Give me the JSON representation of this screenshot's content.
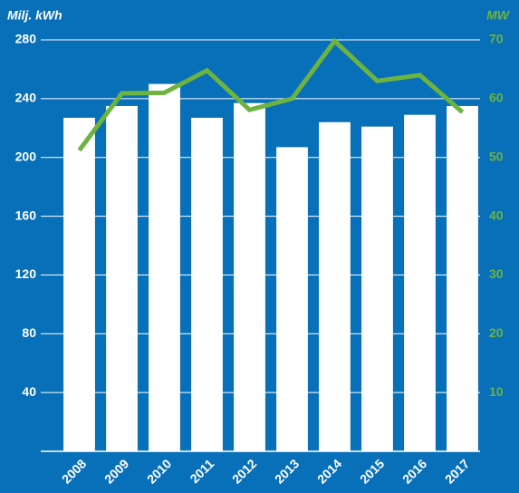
{
  "chart_data": {
    "type": "bar",
    "y_label": "Milj. kWh",
    "y2_label": "MW",
    "categories": [
      "2008",
      "2009",
      "2010",
      "2011",
      "2012",
      "2013",
      "2014",
      "2015",
      "2016",
      "2017"
    ],
    "series": [
      {
        "type": "bar",
        "color": "#ffffff",
        "values": [
          227,
          235,
          250,
          227,
          237,
          207,
          224,
          221,
          229,
          235
        ]
      },
      {
        "type": "line",
        "axis": "y2",
        "color": "#6cb33f",
        "values": [
          51.2,
          60.9,
          61,
          64.8,
          58.1,
          60,
          69.8,
          63,
          64,
          57.7
        ]
      }
    ],
    "ylim": [
      0,
      280
    ],
    "yticks": [
      40,
      80,
      120,
      160,
      200,
      240,
      280
    ],
    "y2lim": [
      0,
      70
    ],
    "y2ticks": [
      10,
      20,
      30,
      40,
      50,
      60,
      70
    ],
    "grid": true,
    "y2_color": "#6cb33f"
  }
}
